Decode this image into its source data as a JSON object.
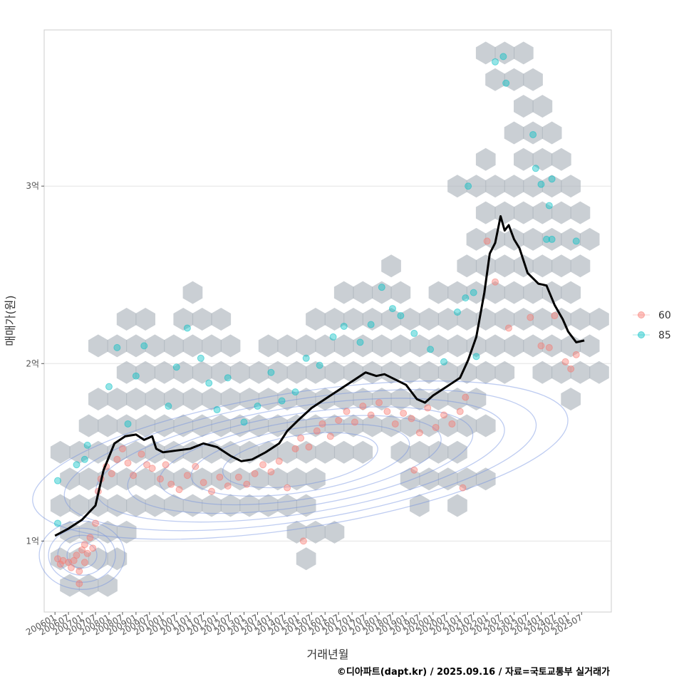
{
  "chart_data": {
    "type": "scatter",
    "title": "",
    "xlabel": "거래년월",
    "ylabel": "매매가(원)",
    "caption": "©디아파트(dapt.kr) / 2025.09.16 / 자료=국토교통부 실거래가",
    "y_ticks": [
      {
        "value": 10000,
        "label": "1억"
      },
      {
        "value": 20000,
        "label": "2억"
      },
      {
        "value": 30000,
        "label": "3억"
      }
    ],
    "ylim": [
      6000,
      38800
    ],
    "xlim": [
      2005.6,
      2026.6
    ],
    "x_ticks": [
      "200601",
      "200607",
      "200701",
      "200707",
      "200801",
      "200807",
      "200901",
      "200907",
      "201001",
      "201007",
      "201101",
      "201107",
      "201201",
      "201207",
      "201301",
      "201307",
      "201401",
      "201407",
      "201501",
      "201507",
      "201601",
      "201607",
      "201701",
      "201707",
      "201801",
      "201807",
      "201901",
      "201907",
      "202001",
      "202007",
      "202101",
      "202107",
      "202201",
      "202207",
      "202301",
      "202307",
      "202401",
      "202407",
      "202501",
      "202507"
    ],
    "legend": {
      "position": "right",
      "entries": [
        {
          "label": "60",
          "color": "#F8766D"
        },
        {
          "label": "85",
          "color": "#00BFC4"
        }
      ]
    },
    "colors": {
      "hex": "#A9B2BA",
      "contour": "#6E8FE0",
      "line": "#000000"
    },
    "median_line": {
      "x": [
        2006.0,
        2006.5,
        2007.0,
        2007.5,
        2007.8,
        2008.2,
        2008.6,
        2009.0,
        2009.3,
        2009.6,
        2009.75,
        2010.0,
        2010.5,
        2011.0,
        2011.5,
        2012.0,
        2012.5,
        2012.9,
        2013.3,
        2013.8,
        2014.3,
        2014.6,
        2015.0,
        2015.5,
        2016.0,
        2016.5,
        2017.0,
        2017.5,
        2017.9,
        2018.2,
        2018.6,
        2019.0,
        2019.4,
        2019.7,
        2020.0,
        2020.5,
        2021.0,
        2021.3,
        2021.6,
        2021.9,
        2022.1,
        2022.3,
        2022.5,
        2022.65,
        2022.8,
        2023.0,
        2023.2,
        2023.5,
        2023.9,
        2024.2,
        2024.5,
        2024.8,
        2025.0,
        2025.3,
        2025.6
      ],
      "y": [
        10300,
        10700,
        11200,
        12000,
        14000,
        15500,
        15900,
        16000,
        15700,
        15900,
        15200,
        15000,
        15100,
        15200,
        15500,
        15300,
        14800,
        14500,
        14600,
        15000,
        15500,
        16200,
        16800,
        17500,
        18000,
        18500,
        19000,
        19500,
        19300,
        19400,
        19100,
        18800,
        18000,
        17800,
        18200,
        18700,
        19200,
        20200,
        21500,
        24000,
        26200,
        26800,
        28300,
        27500,
        27800,
        27000,
        26500,
        25100,
        24500,
        24400,
        23300,
        22500,
        21800,
        21200,
        21300
      ]
    },
    "series": [
      {
        "name": "60",
        "points": [
          {
            "x": 2006.1,
            "y": 9000
          },
          {
            "x": 2006.2,
            "y": 8700
          },
          {
            "x": 2006.3,
            "y": 8900
          },
          {
            "x": 2006.5,
            "y": 8800
          },
          {
            "x": 2006.6,
            "y": 8500
          },
          {
            "x": 2006.7,
            "y": 8900
          },
          {
            "x": 2006.8,
            "y": 9200
          },
          {
            "x": 2006.9,
            "y": 8300
          },
          {
            "x": 2007.0,
            "y": 9500
          },
          {
            "x": 2007.1,
            "y": 9800
          },
          {
            "x": 2007.2,
            "y": 9300
          },
          {
            "x": 2007.3,
            "y": 10200
          },
          {
            "x": 2007.4,
            "y": 9600
          },
          {
            "x": 2007.5,
            "y": 11000
          },
          {
            "x": 2006.9,
            "y": 7600
          },
          {
            "x": 2007.1,
            "y": 8800
          },
          {
            "x": 2007.6,
            "y": 12800
          },
          {
            "x": 2007.7,
            "y": 13500
          },
          {
            "x": 2007.9,
            "y": 14200
          },
          {
            "x": 2008.1,
            "y": 13800
          },
          {
            "x": 2008.3,
            "y": 14600
          },
          {
            "x": 2008.5,
            "y": 15200
          },
          {
            "x": 2008.7,
            "y": 14400
          },
          {
            "x": 2008.9,
            "y": 13700
          },
          {
            "x": 2009.2,
            "y": 14900
          },
          {
            "x": 2009.4,
            "y": 14300
          },
          {
            "x": 2009.6,
            "y": 14100
          },
          {
            "x": 2009.9,
            "y": 13500
          },
          {
            "x": 2010.1,
            "y": 14300
          },
          {
            "x": 2010.3,
            "y": 13200
          },
          {
            "x": 2010.6,
            "y": 12900
          },
          {
            "x": 2010.9,
            "y": 13700
          },
          {
            "x": 2011.2,
            "y": 14200
          },
          {
            "x": 2011.5,
            "y": 13300
          },
          {
            "x": 2011.8,
            "y": 12800
          },
          {
            "x": 2012.1,
            "y": 13600
          },
          {
            "x": 2012.4,
            "y": 13100
          },
          {
            "x": 2012.8,
            "y": 13600
          },
          {
            "x": 2013.1,
            "y": 13200
          },
          {
            "x": 2013.4,
            "y": 13800
          },
          {
            "x": 2013.7,
            "y": 14300
          },
          {
            "x": 2014.0,
            "y": 13900
          },
          {
            "x": 2014.3,
            "y": 14500
          },
          {
            "x": 2014.6,
            "y": 13000
          },
          {
            "x": 2014.9,
            "y": 15200
          },
          {
            "x": 2015.1,
            "y": 15800
          },
          {
            "x": 2015.4,
            "y": 15300
          },
          {
            "x": 2015.7,
            "y": 16200
          },
          {
            "x": 2015.9,
            "y": 16600
          },
          {
            "x": 2016.2,
            "y": 15900
          },
          {
            "x": 2016.5,
            "y": 16800
          },
          {
            "x": 2016.8,
            "y": 17300
          },
          {
            "x": 2017.1,
            "y": 16700
          },
          {
            "x": 2017.4,
            "y": 17600
          },
          {
            "x": 2017.7,
            "y": 17100
          },
          {
            "x": 2018.0,
            "y": 17800
          },
          {
            "x": 2018.3,
            "y": 17300
          },
          {
            "x": 2018.6,
            "y": 16600
          },
          {
            "x": 2018.9,
            "y": 17200
          },
          {
            "x": 2019.2,
            "y": 16900
          },
          {
            "x": 2019.5,
            "y": 16100
          },
          {
            "x": 2019.8,
            "y": 17500
          },
          {
            "x": 2020.1,
            "y": 16400
          },
          {
            "x": 2020.4,
            "y": 17100
          },
          {
            "x": 2020.7,
            "y": 16600
          },
          {
            "x": 2021.0,
            "y": 17300
          },
          {
            "x": 2021.2,
            "y": 18100
          },
          {
            "x": 2021.1,
            "y": 13000
          },
          {
            "x": 2015.2,
            "y": 10000
          },
          {
            "x": 2019.3,
            "y": 14000
          },
          {
            "x": 2022.0,
            "y": 26900
          },
          {
            "x": 2022.3,
            "y": 24600
          },
          {
            "x": 2022.8,
            "y": 22000
          },
          {
            "x": 2023.6,
            "y": 22600
          },
          {
            "x": 2024.0,
            "y": 21000
          },
          {
            "x": 2024.3,
            "y": 20900
          },
          {
            "x": 2024.5,
            "y": 22700
          },
          {
            "x": 2024.9,
            "y": 20100
          },
          {
            "x": 2025.1,
            "y": 19700
          },
          {
            "x": 2025.3,
            "y": 20500
          }
        ]
      },
      {
        "name": "85",
        "points": [
          {
            "x": 2006.1,
            "y": 11000
          },
          {
            "x": 2006.1,
            "y": 13400
          },
          {
            "x": 2006.8,
            "y": 14300
          },
          {
            "x": 2007.1,
            "y": 14600
          },
          {
            "x": 2007.2,
            "y": 15400
          },
          {
            "x": 2008.0,
            "y": 18700
          },
          {
            "x": 2008.3,
            "y": 20900
          },
          {
            "x": 2008.7,
            "y": 16600
          },
          {
            "x": 2009.0,
            "y": 19300
          },
          {
            "x": 2009.3,
            "y": 21000
          },
          {
            "x": 2010.2,
            "y": 17600
          },
          {
            "x": 2010.5,
            "y": 19800
          },
          {
            "x": 2010.9,
            "y": 22000
          },
          {
            "x": 2011.4,
            "y": 20300
          },
          {
            "x": 2011.7,
            "y": 18900
          },
          {
            "x": 2012.0,
            "y": 17400
          },
          {
            "x": 2012.4,
            "y": 19200
          },
          {
            "x": 2013.0,
            "y": 16700
          },
          {
            "x": 2013.5,
            "y": 17600
          },
          {
            "x": 2014.0,
            "y": 19500
          },
          {
            "x": 2014.4,
            "y": 17900
          },
          {
            "x": 2014.9,
            "y": 18400
          },
          {
            "x": 2015.3,
            "y": 20300
          },
          {
            "x": 2015.8,
            "y": 19900
          },
          {
            "x": 2016.3,
            "y": 21500
          },
          {
            "x": 2016.7,
            "y": 22100
          },
          {
            "x": 2017.3,
            "y": 21200
          },
          {
            "x": 2017.7,
            "y": 22200
          },
          {
            "x": 2018.1,
            "y": 24300
          },
          {
            "x": 2018.5,
            "y": 23100
          },
          {
            "x": 2018.8,
            "y": 22700
          },
          {
            "x": 2019.3,
            "y": 21700
          },
          {
            "x": 2019.9,
            "y": 20800
          },
          {
            "x": 2020.4,
            "y": 20100
          },
          {
            "x": 2020.9,
            "y": 22900
          },
          {
            "x": 2021.2,
            "y": 23700
          },
          {
            "x": 2021.5,
            "y": 24000
          },
          {
            "x": 2021.3,
            "y": 30000
          },
          {
            "x": 2021.6,
            "y": 20400
          },
          {
            "x": 2022.3,
            "y": 37000
          },
          {
            "x": 2022.6,
            "y": 37300
          },
          {
            "x": 2022.7,
            "y": 35800
          },
          {
            "x": 2023.7,
            "y": 32900
          },
          {
            "x": 2023.8,
            "y": 31000
          },
          {
            "x": 2024.0,
            "y": 30100
          },
          {
            "x": 2024.3,
            "y": 28900
          },
          {
            "x": 2024.4,
            "y": 30400
          },
          {
            "x": 2024.2,
            "y": 27000
          },
          {
            "x": 2024.4,
            "y": 27000
          },
          {
            "x": 2025.3,
            "y": 26900
          }
        ]
      }
    ]
  }
}
